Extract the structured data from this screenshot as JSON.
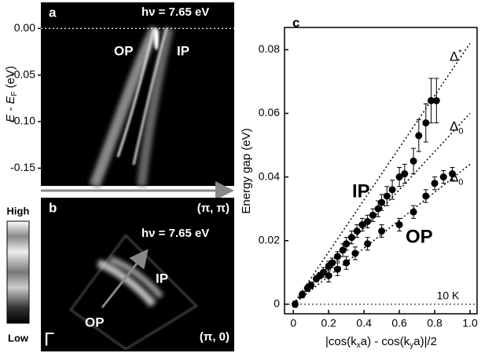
{
  "chart_data": [
    {
      "type": "image",
      "label": "a",
      "annotation": "hν = 7.65 eV",
      "markers": [
        "OP",
        "IP"
      ],
      "ylabel": [
        "E - E",
        "F",
        " (eV)"
      ],
      "ylim": [
        -0.169,
        0.028
      ],
      "yticks": [
        {
          "value": 0,
          "label": "0.00"
        },
        -0.05,
        {
          "value": -0.1,
          "label": "-0.10"
        },
        {
          "value": -0.15,
          "label": "-0.15"
        }
      ]
    },
    {
      "type": "image",
      "label": "b",
      "corners": [
        "(π, π)",
        "(π, 0)"
      ],
      "annotation": "hν = 7.65 eV",
      "markers": [
        "IP",
        "OP"
      ],
      "origin": "Γ",
      "colorbar": [
        "High",
        "Low"
      ]
    },
    {
      "type": "scatter",
      "label": "c",
      "ylabel": "Energy gap (eV)",
      "xlabel": [
        "|cos(k",
        "x",
        "a) - cos(k",
        "y",
        "a)|/2"
      ],
      "xlim": [
        -0.05,
        1.04
      ],
      "ylim": [
        -0.003,
        0.087
      ],
      "xticks": [
        0,
        0.2,
        0.4,
        0.6,
        0.8,
        {
          "value": 1,
          "label": "1.0"
        }
      ],
      "yticks": [
        0,
        0.02,
        0.04,
        0.06,
        0.08
      ],
      "temperature": "10 K",
      "series": [
        {
          "name": "IP",
          "color": "#000000",
          "x": [
            0.01,
            0.05,
            0.08,
            0.1,
            0.13,
            0.15,
            0.17,
            0.2,
            0.22,
            0.25,
            0.28,
            0.3,
            0.33,
            0.36,
            0.39,
            0.42,
            0.45,
            0.48,
            0.5,
            0.53,
            0.56,
            0.6,
            0.63,
            0.68,
            0.71,
            0.75,
            0.78,
            0.81
          ],
          "values": [
            0.0,
            0.003,
            0.005,
            0.006,
            0.008,
            0.009,
            0.01,
            0.012,
            0.013,
            0.015,
            0.017,
            0.019,
            0.021,
            0.023,
            0.025,
            0.026,
            0.028,
            0.03,
            0.032,
            0.034,
            0.036,
            0.04,
            0.041,
            0.045,
            0.053,
            0.057,
            0.064,
            0.064
          ],
          "errors": [
            0.001,
            0.001,
            0.001,
            0.001,
            0.001,
            0.001,
            0.0015,
            0.0015,
            0.0015,
            0.0015,
            0.002,
            0.002,
            0.002,
            0.002,
            0.002,
            0.002,
            0.002,
            0.0025,
            0.0025,
            0.003,
            0.003,
            0.003,
            0.003,
            0.004,
            0.005,
            0.006,
            0.007,
            0.007
          ]
        },
        {
          "name": "OP",
          "color": "#000000",
          "x": [
            0.2,
            0.25,
            0.3,
            0.35,
            0.42,
            0.5,
            0.6,
            0.68,
            0.75,
            0.8,
            0.85,
            0.9
          ],
          "values": [
            0.009,
            0.011,
            0.013,
            0.016,
            0.019,
            0.023,
            0.025,
            0.029,
            0.034,
            0.038,
            0.04,
            0.041
          ],
          "errors": [
            0.002,
            0.002,
            0.002,
            0.002,
            0.002,
            0.002,
            0.002,
            0.002,
            0.002,
            0.002,
            0.002,
            0.002
          ]
        }
      ],
      "fits": [
        {
          "label_parts": [
            "Δ",
            "*"
          ],
          "x": [
            0,
            1
          ],
          "y": [
            0,
            0.082
          ]
        },
        {
          "label_parts": [
            "Δ",
            "0"
          ],
          "x": [
            0,
            1
          ],
          "y": [
            0,
            0.06
          ]
        },
        {
          "label_parts": [
            "Δ",
            "0"
          ],
          "x": [
            0,
            1
          ],
          "y": [
            0,
            0.044
          ]
        }
      ]
    }
  ]
}
